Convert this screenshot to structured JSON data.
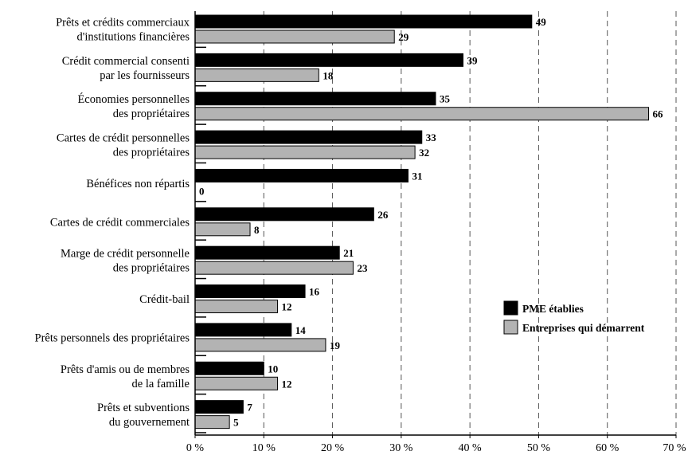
{
  "chart_data": {
    "type": "bar",
    "orientation": "horizontal",
    "categories": [
      [
        "Prêts et crédits commerciaux",
        "d'institutions financières"
      ],
      [
        "Crédit commercial consenti",
        "par les fournisseurs"
      ],
      [
        "Économies personnelles",
        "des propriétaires"
      ],
      [
        "Cartes de crédit personnelles",
        "des propriétaires"
      ],
      [
        "Bénéfices non répartis"
      ],
      [
        "Cartes de crédit commerciales"
      ],
      [
        "Marge de crédit personnelle",
        "des propriétaires"
      ],
      [
        "Crédit-bail"
      ],
      [
        "Prêts personnels des propriétaires"
      ],
      [
        "Prêts d'amis ou de membres",
        "de la famille"
      ],
      [
        "Prêts et subventions",
        "du gouvernement"
      ]
    ],
    "series": [
      {
        "name": "PME établies",
        "color": "#000000",
        "values": [
          49,
          39,
          35,
          33,
          31,
          26,
          21,
          16,
          14,
          10,
          7
        ]
      },
      {
        "name": "Entreprises qui démarrent",
        "color": "#b3b3b3",
        "values": [
          29,
          18,
          66,
          32,
          0,
          8,
          23,
          12,
          19,
          12,
          5
        ]
      }
    ],
    "xlim": [
      0,
      70
    ],
    "xticks": [
      0,
      10,
      20,
      30,
      40,
      50,
      60,
      70
    ],
    "xtick_labels": [
      "0 %",
      "10 %",
      "20 %",
      "30 %",
      "40 %",
      "50 %",
      "60 %",
      "70 %"
    ],
    "grid": "vertical-dashed",
    "legend_position": "right-middle",
    "title": "",
    "xlabel": "",
    "ylabel": ""
  }
}
